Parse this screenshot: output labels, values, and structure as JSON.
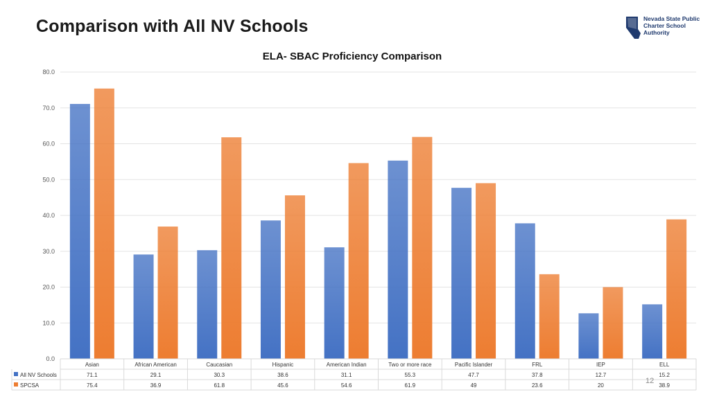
{
  "slide": {
    "title": "Comparison with All NV Schools",
    "logo_text": [
      "Nevada State Public",
      "Charter School",
      "Authority"
    ],
    "page_number": "12"
  },
  "chart_data": {
    "type": "bar",
    "title": "ELA- SBAC Proficiency Comparison",
    "categories": [
      "Asian",
      "African American",
      "Caucasian",
      "Hispanic",
      "American Indian",
      "Two or more race",
      "Pacific Islander",
      "FRL",
      "IEP",
      "ELL"
    ],
    "series": [
      {
        "name": "All NV Schools",
        "color": "#4472c4",
        "values": [
          71.1,
          29.1,
          30.3,
          38.6,
          31.1,
          55.3,
          47.7,
          37.8,
          12.7,
          15.2
        ],
        "labels": [
          "71.1",
          "29.1",
          "30.3",
          "38.6",
          "31.1",
          "55.3",
          "47.7",
          "37.8",
          "12.7",
          "15.2"
        ]
      },
      {
        "name": "SPCSA",
        "color": "#ed7d31",
        "values": [
          75.4,
          36.9,
          61.8,
          45.6,
          54.6,
          61.9,
          49,
          23.6,
          20,
          38.9
        ],
        "labels": [
          "75.4",
          "36.9",
          "61.8",
          "45.6",
          "54.6",
          "61.9",
          "49",
          "23.6",
          "20",
          "38.9"
        ]
      }
    ],
    "ylim": [
      0,
      80
    ],
    "yticks": [
      "0.0",
      "10.0",
      "20.0",
      "30.0",
      "40.0",
      "50.0",
      "60.0",
      "70.0",
      "80.0"
    ],
    "grid": true,
    "legend": "data-table",
    "data_table": true
  }
}
